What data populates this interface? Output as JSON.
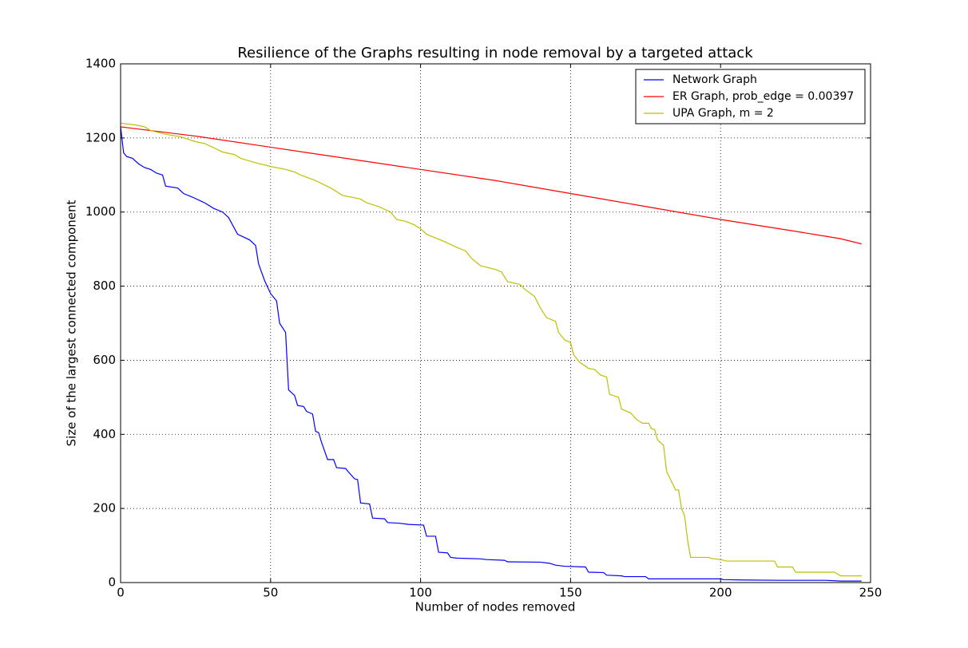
{
  "chart_data": {
    "type": "line",
    "title": "Resilience of the Graphs resulting in node removal by a targeted attack",
    "xlabel": "Number of nodes removed",
    "ylabel": "Size of the largest connected component",
    "xlim": [
      0,
      250
    ],
    "ylim": [
      0,
      1400
    ],
    "xticks": [
      0,
      50,
      100,
      150,
      200,
      250
    ],
    "yticks": [
      0,
      200,
      400,
      600,
      800,
      1000,
      1200,
      1400
    ],
    "grid": true,
    "legend": "upper right",
    "series": [
      {
        "name": "Network Graph",
        "color": "#0000ff",
        "x": [
          0,
          1,
          2,
          4,
          6,
          8,
          10,
          12,
          14,
          15,
          19,
          21,
          24,
          28,
          31,
          34,
          36,
          39,
          43,
          45,
          46,
          48,
          50,
          52,
          53,
          55,
          56,
          58,
          59,
          61,
          62,
          64,
          65,
          66,
          67,
          69,
          71,
          72,
          75,
          76,
          78,
          79,
          80,
          83,
          84,
          88,
          89,
          93,
          96,
          101,
          102,
          105,
          106,
          109,
          110,
          112,
          120,
          122,
          128,
          129,
          140,
          143,
          145,
          148,
          155,
          156,
          161,
          162,
          167,
          168,
          175,
          176,
          200,
          201,
          207,
          220,
          235,
          240,
          247
        ],
        "values": [
          1230,
          1160,
          1150,
          1145,
          1130,
          1120,
          1115,
          1105,
          1100,
          1070,
          1065,
          1050,
          1040,
          1025,
          1010,
          1000,
          985,
          940,
          925,
          910,
          860,
          815,
          780,
          760,
          700,
          675,
          520,
          505,
          478,
          475,
          462,
          455,
          408,
          405,
          378,
          332,
          332,
          310,
          308,
          298,
          280,
          278,
          215,
          212,
          174,
          172,
          162,
          160,
          157,
          155,
          125,
          125,
          82,
          80,
          68,
          66,
          64,
          62,
          60,
          56,
          55,
          52,
          47,
          44,
          42,
          28,
          27,
          20,
          18,
          16,
          16,
          10,
          10,
          8,
          7,
          6,
          6,
          4,
          4
        ]
      },
      {
        "name": "ER Graph, prob_edge = 0.00397",
        "color": "#ff0000",
        "x": [
          0,
          25,
          50,
          75,
          100,
          125,
          150,
          175,
          200,
          225,
          240,
          247
        ],
        "values": [
          1230,
          1205,
          1175,
          1145,
          1115,
          1085,
          1050,
          1015,
          980,
          948,
          928,
          914
        ]
      },
      {
        "name": "UPA Graph, m = 2",
        "color": "#bfbf00",
        "x": [
          0,
          5,
          8,
          10,
          15,
          20,
          23,
          25,
          28,
          32,
          34,
          38,
          40,
          45,
          50,
          55,
          58,
          60,
          65,
          70,
          74,
          80,
          82,
          86,
          90,
          92,
          95,
          98,
          100,
          102,
          105,
          108,
          112,
          115,
          117,
          120,
          125,
          127,
          129,
          133,
          135,
          138,
          140,
          142,
          145,
          146,
          148,
          150,
          151,
          153,
          156,
          158,
          160,
          162,
          163,
          166,
          167,
          170,
          172,
          174,
          176,
          177,
          178,
          179,
          181,
          182,
          185,
          186,
          187,
          188,
          189,
          190,
          196,
          197,
          200,
          202,
          218,
          219,
          224,
          225,
          238,
          240,
          247
        ],
        "values": [
          1240,
          1235,
          1230,
          1220,
          1210,
          1203,
          1195,
          1190,
          1185,
          1170,
          1162,
          1155,
          1145,
          1133,
          1123,
          1115,
          1108,
          1100,
          1085,
          1065,
          1045,
          1035,
          1025,
          1015,
          1000,
          980,
          975,
          965,
          955,
          940,
          930,
          920,
          905,
          895,
          875,
          855,
          845,
          838,
          812,
          805,
          790,
          772,
          740,
          715,
          705,
          675,
          655,
          648,
          615,
          595,
          578,
          575,
          560,
          555,
          508,
          500,
          468,
          458,
          440,
          430,
          430,
          415,
          413,
          385,
          370,
          300,
          250,
          250,
          200,
          180,
          115,
          68,
          68,
          65,
          62,
          58,
          58,
          42,
          42,
          28,
          28,
          18,
          18
        ]
      }
    ]
  }
}
